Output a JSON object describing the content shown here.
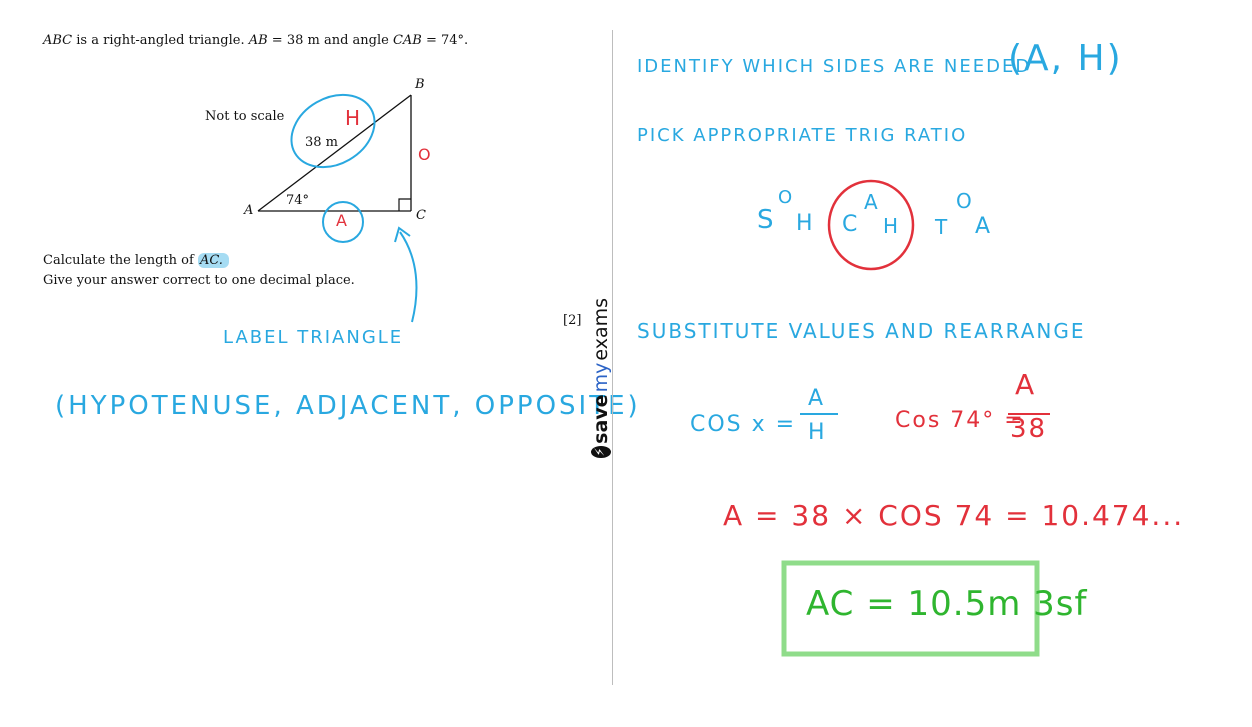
{
  "question": {
    "intro_a": "ABC",
    "intro_b": " is a right-angled triangle. ",
    "intro_c": "AB",
    "intro_d": " = 38 m and angle ",
    "intro_e": "CAB",
    "intro_f": " = 74°.",
    "not_to_scale": "Not to scale",
    "label_a": "A",
    "label_b": "B",
    "label_c": "C",
    "side_label": "38 m",
    "angle_label": "74°",
    "calc_a": "Calculate the length of ",
    "calc_b": "AC.",
    "instruction": "Give your answer correct to one decimal place.",
    "marks": "[2]"
  },
  "annotations_left": {
    "hyp_mark": "H",
    "adj_mark": "A",
    "opp_mark": "O",
    "label_triangle": "LABEL TRIANGLE",
    "sides_list": "(HYPOTENUSE, ADJACENT, OPPOSITE)"
  },
  "brand": {
    "save": "save",
    "my": "my",
    "exams": "exams"
  },
  "working": {
    "step1": "IDENTIFY WHICH SIDES ARE NEEDED",
    "step1_sides": "(A, H)",
    "step2": "PICK APPROPRIATE TRIG RATIO",
    "sohcahtoa": {
      "s": "S",
      "s_top": "O",
      "s_bottom": "H",
      "c": "C",
      "c_top": "A",
      "c_bottom": "H",
      "t": "T",
      "t_top": "O",
      "t_bottom": "A"
    },
    "step3": "SUBSTITUTE VALUES AND REARRANGE",
    "formula_lhs": "COS x =",
    "formula_num": "A",
    "formula_den": "H",
    "sub_lhs": "Cos 74° =",
    "sub_num": "A",
    "sub_den": "38",
    "calc_line": "A = 38 × COS 74 = 10.474...",
    "answer": "AC = 10.5m 3sf"
  },
  "colors": {
    "blue": "#29a8e0",
    "red": "#e2313b",
    "green": "#2fb52f",
    "box": "#8fdc8a"
  }
}
